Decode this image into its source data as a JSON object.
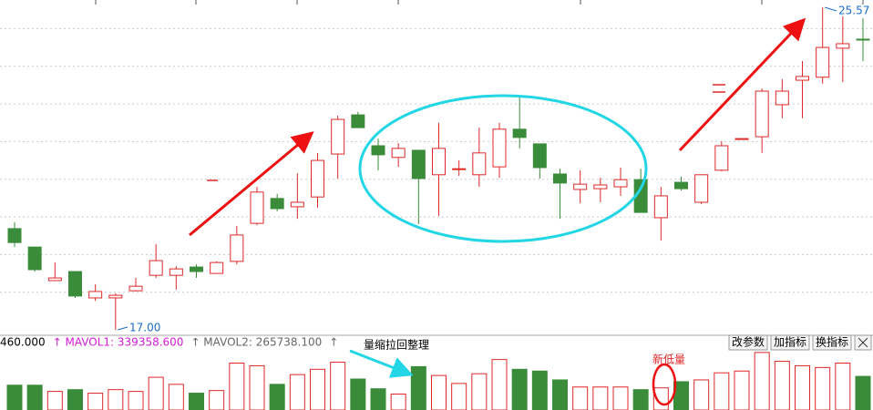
{
  "chart_data": {
    "type": "candlestick",
    "up_color": "#e02828",
    "down_color": "#3a8c3a",
    "ylim": [
      16.93,
      25.76
    ],
    "grid_values": [
      18,
      19,
      20,
      21,
      22,
      23,
      24,
      25
    ],
    "open": [
      19.69,
      19.2,
      18.31,
      18.55,
      17.85,
      17.85,
      18.04,
      18.45,
      18.45,
      18.67,
      18.5,
      18.82,
      19.83,
      20.49,
      20.27,
      20.53,
      21.67,
      22.71,
      21.89,
      21.58,
      21.77,
      21.12,
      21.26,
      21.12,
      21.33,
      22.33,
      21.94,
      21.14,
      20.73,
      20.75,
      20.8,
      20.99,
      19.98,
      20.92,
      20.39,
      21.24,
      22.06,
      22.13,
      22.98,
      23.63,
      23.71,
      24.48,
      24.72
    ],
    "high": [
      19.86,
      19.2,
      18.79,
      18.55,
      18.21,
      17.97,
      18.38,
      19.28,
      18.69,
      18.74,
      18.82,
      19.76,
      20.8,
      20.61,
      21.16,
      21.7,
      22.69,
      22.79,
      22.08,
      21.96,
      21.77,
      22.5,
      21.5,
      22.37,
      22.5,
      23.2,
      21.94,
      21.28,
      21.24,
      21.04,
      21.31,
      21.28,
      20.8,
      21.07,
      21.12,
      22.01,
      22.08,
      23.41,
      23.66,
      24.14,
      25.57,
      25.33,
      25.28
    ],
    "low": [
      19.2,
      18.55,
      18.31,
      17.85,
      17.77,
      17.0,
      18.02,
      18.38,
      18.07,
      18.38,
      18.5,
      18.74,
      19.78,
      20.15,
      19.95,
      20.24,
      21.02,
      22.37,
      21.24,
      21.33,
      19.81,
      20.03,
      21.09,
      20.8,
      21.04,
      21.82,
      21.02,
      19.95,
      20.36,
      20.39,
      20.56,
      20.12,
      19.37,
      20.7,
      20.34,
      21.21,
      22.06,
      21.7,
      22.62,
      22.62,
      23.54,
      23.58,
      24.14
    ],
    "close": [
      19.32,
      18.6,
      18.38,
      17.9,
      18.02,
      17.92,
      18.16,
      18.84,
      18.62,
      18.55,
      18.79,
      19.52,
      20.66,
      20.22,
      20.39,
      21.5,
      22.59,
      22.37,
      21.65,
      21.82,
      21.02,
      21.82,
      21.28,
      21.7,
      22.33,
      22.11,
      21.31,
      20.9,
      20.87,
      20.85,
      20.99,
      20.12,
      20.56,
      20.75,
      21.12,
      21.89,
      22.08,
      23.34,
      23.34,
      23.73,
      24.5,
      24.6,
      24.7
    ],
    "volume": [
      238000,
      238000,
      178500,
      195500,
      161500,
      195500,
      178500,
      314500,
      246500,
      161500,
      187000,
      450500,
      425000,
      246500,
      340000,
      391000,
      459000,
      297500,
      204000,
      153000,
      416500,
      331500,
      255000,
      348500,
      484500,
      391000,
      374000,
      289000,
      221000,
      221000,
      221000,
      195500,
      212500,
      272000,
      289000,
      357000,
      374000,
      552500,
      467500,
      425000,
      408000,
      450500,
      323000
    ],
    "volume_ylim": [
      0,
      560000
    ],
    "low_label": "17.00",
    "high_label": "25.57",
    "volume_header": [
      {
        "text": "460.000",
        "color": "#000000"
      },
      {
        "text": "↑ MAVOL1: 339358.600",
        "color": "#d41cd4"
      },
      {
        "text": "↑ MAVOL2: 265738.100",
        "color": "#666666"
      },
      {
        "text": "↑",
        "color": "#666666"
      }
    ],
    "buttons": [
      "改参数",
      "加指标",
      "换指标"
    ],
    "annotations": {
      "shrink": "量缩拉回整理",
      "new_low": "新低量"
    }
  }
}
